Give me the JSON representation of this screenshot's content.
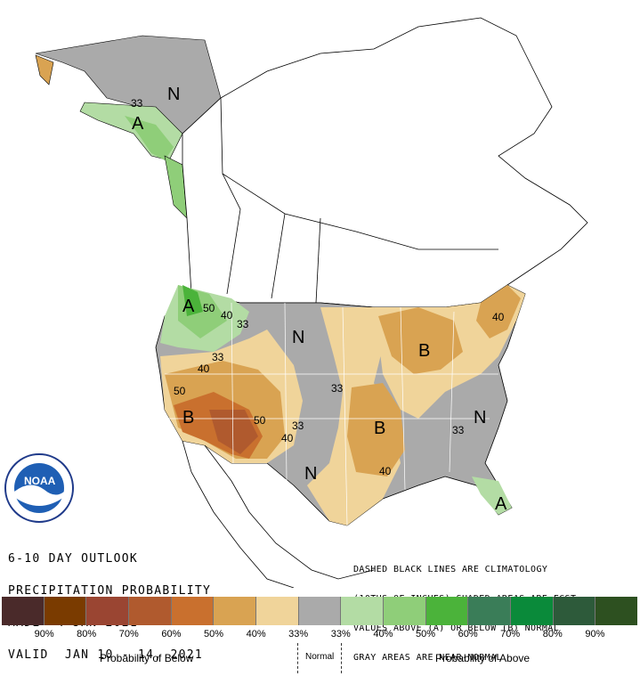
{
  "title_block": {
    "line1": "6-10 DAY OUTLOOK",
    "line2": "PRECIPITATION PROBABILITY",
    "line3": "MADE  4 JAN 2021",
    "line4": "VALID  JAN 10 - 14, 2021"
  },
  "note_block": {
    "line1": "DASHED BLACK LINES ARE CLIMATOLOGY",
    "line2": "(10THS OF INCHES) SHADED AREAS ARE FCST",
    "line3": "VALUES ABOVE (A) OR BELOW (B) NORMAL",
    "line4": "GRAY AREAS ARE NEAR-NORMAL"
  },
  "logo": {
    "name": "NOAA",
    "ring_text": "NATIONAL OCEANIC AND ATMOSPHERIC ADMINISTRATION · U.S. DEPARTMENT OF COMMERCE"
  },
  "map_labels": {
    "near_normal": "N",
    "above": "A",
    "below": "B",
    "contour_33": "33",
    "contour_40": "40",
    "contour_50": "50"
  },
  "legend": {
    "colors": [
      "#4a2a2a",
      "#7a3b00",
      "#9a4532",
      "#b05a2e",
      "#c9702e",
      "#d9a352",
      "#f0d49a",
      "#aaaaaa",
      "#b3dca4",
      "#8fce79",
      "#4bb33a",
      "#3a7d58",
      "#0a8a3a",
      "#2d5a3a",
      "#2d5020"
    ],
    "ticks": [
      "90%",
      "80%",
      "70%",
      "60%",
      "50%",
      "40%",
      "33%",
      "33%",
      "40%",
      "50%",
      "60%",
      "70%",
      "80%",
      "90%"
    ],
    "below_caption": "Probability of Below",
    "normal_caption": "Normal",
    "above_caption": "Probability of Above"
  },
  "colors": {
    "gray_normal": "#aaaaaa",
    "below_33": "#f0d49a",
    "below_40": "#d9a352",
    "below_50": "#c9702e",
    "above_33": "#b3dca4",
    "above_40": "#8fce79",
    "above_50": "#4bb33a"
  }
}
